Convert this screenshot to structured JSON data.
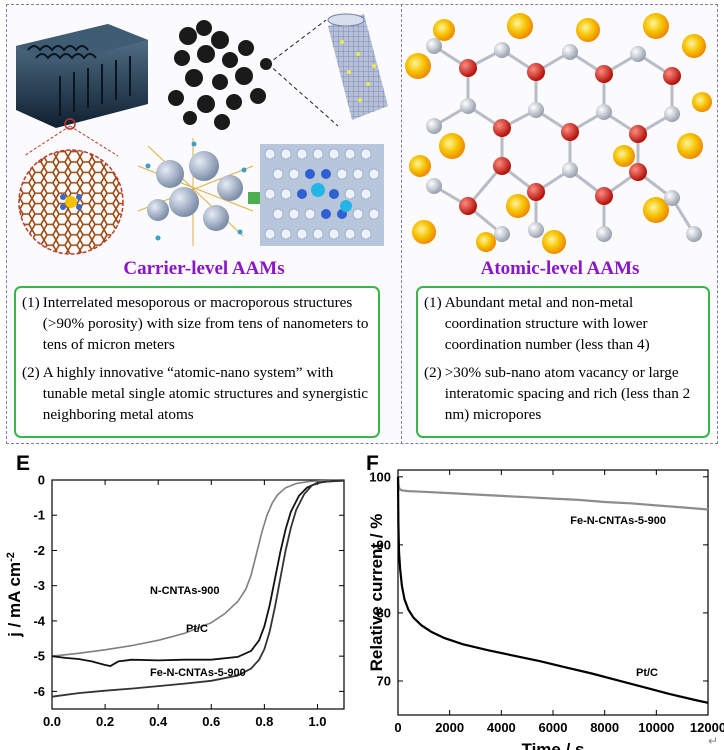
{
  "carrier": {
    "title": "Carrier-level AAMs",
    "items": [
      {
        "num": "(1)",
        "text": "Interrelated mesoporous or macroporous structures (>90% porosity) with size from tens of nanometers to tens of micron meters"
      },
      {
        "num": "(2)",
        "text": "A highly innovative “atomic-nano system” with tunable metal single atomic structures and synergistic neighboring metal atoms"
      }
    ]
  },
  "atomic": {
    "title": "Atomic-level AAMs",
    "items": [
      {
        "num": "(1)",
        "text": "Abundant metal and non-metal coordination structure with lower coordination number (less than 4)"
      },
      {
        "num": "(2)",
        "text": ">30% sub-nano atom vacancy or large interatomic spacing and rich (less than 2 nm) micropores"
      }
    ]
  },
  "panel_e": {
    "letter": "E"
  },
  "panel_f": {
    "letter": "F"
  },
  "chart_data": [
    {
      "type": "line",
      "xlabel": "",
      "ylabel": "j / mA cm",
      "ylabel_sup": "-2",
      "xlim": [
        0.0,
        1.1
      ],
      "ylim": [
        -6.5,
        0
      ],
      "xticks": [
        "0.0",
        "0.2",
        "0.4",
        "0.6",
        "0.8",
        "1.0"
      ],
      "yticks": [
        "0",
        "-1",
        "-2",
        "-3",
        "-4",
        "-5",
        "-6"
      ],
      "series": [
        {
          "name": "N-CNTAs-900",
          "color": "#7f7f7f",
          "x": [
            0.0,
            0.1,
            0.2,
            0.3,
            0.4,
            0.5,
            0.6,
            0.65,
            0.7,
            0.73,
            0.75,
            0.77,
            0.79,
            0.81,
            0.83,
            0.85,
            0.88,
            0.92,
            0.97,
            1.02,
            1.1
          ],
          "y": [
            -5.0,
            -4.92,
            -4.82,
            -4.7,
            -4.55,
            -4.35,
            -4.05,
            -3.8,
            -3.45,
            -3.1,
            -2.7,
            -2.1,
            -1.5,
            -1.0,
            -0.65,
            -0.42,
            -0.22,
            -0.1,
            -0.04,
            -0.02,
            -0.01
          ]
        },
        {
          "name": "Pt/C",
          "color": "#111111",
          "x": [
            0.0,
            0.05,
            0.1,
            0.15,
            0.2,
            0.22,
            0.25,
            0.3,
            0.4,
            0.5,
            0.6,
            0.7,
            0.75,
            0.78,
            0.8,
            0.82,
            0.84,
            0.86,
            0.88,
            0.9,
            0.93,
            0.96,
            1.0,
            1.05,
            1.1
          ],
          "y": [
            -5.0,
            -5.05,
            -5.08,
            -5.15,
            -5.25,
            -5.28,
            -5.15,
            -5.1,
            -5.12,
            -5.1,
            -5.1,
            -5.02,
            -4.85,
            -4.55,
            -4.15,
            -3.55,
            -2.8,
            -2.05,
            -1.4,
            -0.9,
            -0.45,
            -0.22,
            -0.08,
            -0.03,
            -0.01
          ]
        },
        {
          "name": "Fe-N-CNTAs-5-900",
          "color": "#333333",
          "x": [
            0.0,
            0.1,
            0.2,
            0.3,
            0.4,
            0.5,
            0.6,
            0.7,
            0.75,
            0.78,
            0.8,
            0.82,
            0.84,
            0.86,
            0.88,
            0.9,
            0.92,
            0.95,
            0.98,
            1.02,
            1.1
          ],
          "y": [
            -6.15,
            -6.05,
            -5.98,
            -5.92,
            -5.85,
            -5.78,
            -5.7,
            -5.55,
            -5.35,
            -5.1,
            -4.8,
            -4.3,
            -3.6,
            -2.8,
            -2.0,
            -1.35,
            -0.85,
            -0.4,
            -0.15,
            -0.05,
            -0.02
          ]
        }
      ]
    },
    {
      "type": "line",
      "xlabel": "Time / s",
      "ylabel": "Relative current / %",
      "xlim": [
        0,
        12000
      ],
      "ylim": [
        65,
        101
      ],
      "xticks": [
        "0",
        "2000",
        "4000",
        "6000",
        "8000",
        "10000",
        "12000"
      ],
      "yticks": [
        "70",
        "80",
        "90",
        "100"
      ],
      "series": [
        {
          "name": "Fe-N-CNTAs-5-900",
          "color": "#8c8c8c",
          "x": [
            0,
            20,
            60,
            150,
            400,
            1000,
            2000,
            3000,
            4000,
            5000,
            6000,
            7000,
            8000,
            9000,
            10000,
            11000,
            12000
          ],
          "y": [
            100,
            98.8,
            98.2,
            98.0,
            97.9,
            97.8,
            97.6,
            97.4,
            97.2,
            97.0,
            96.8,
            96.6,
            96.3,
            96.1,
            95.8,
            95.5,
            95.2
          ]
        },
        {
          "name": "Pt/C",
          "color": "#000000",
          "x": [
            0,
            15,
            40,
            80,
            150,
            250,
            400,
            600,
            900,
            1300,
            1800,
            2500,
            3500,
            4500,
            5500,
            6500,
            7500,
            8500,
            9500,
            10500,
            11500,
            12000
          ],
          "y": [
            100,
            93,
            89,
            86.5,
            84,
            82,
            80.5,
            79.3,
            78.2,
            77.2,
            76.3,
            75.4,
            74.5,
            73.7,
            72.9,
            72.0,
            71.1,
            70.1,
            69.1,
            68.1,
            67.2,
            66.8
          ]
        }
      ]
    }
  ]
}
